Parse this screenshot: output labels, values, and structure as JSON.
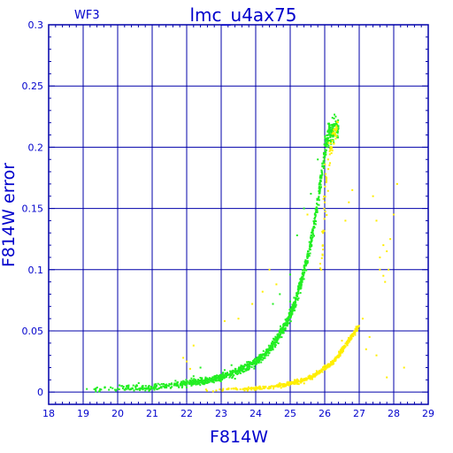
{
  "chart_data": {
    "type": "scatter",
    "title": "lmc_u4ax75",
    "corner_label": "WF3",
    "xlabel": "F814W",
    "ylabel": "F814W error",
    "xlim": [
      18,
      29
    ],
    "ylim": [
      -0.01,
      0.3
    ],
    "x_ticks": [
      18,
      19,
      20,
      21,
      22,
      23,
      24,
      25,
      26,
      27,
      28,
      29
    ],
    "y_ticks": [
      0,
      0.05,
      0.1,
      0.15,
      0.2,
      0.25,
      0.3
    ],
    "y_tick_labels": [
      "0",
      "0.05",
      "0.1",
      "0.15",
      "0.2",
      "0.25",
      "0.3"
    ],
    "grid": true,
    "colors": {
      "axis": "#0000aa",
      "grid": "#0000aa",
      "text": "#0000cc",
      "series_green": "#22ee22",
      "series_yellow": "#ffee00"
    },
    "series": [
      {
        "color": "green",
        "marker": "dot",
        "trend": [
          [
            18.8,
            0.002
          ],
          [
            19.5,
            0.0025
          ],
          [
            20.0,
            0.003
          ],
          [
            20.5,
            0.0035
          ],
          [
            21.0,
            0.004
          ],
          [
            21.5,
            0.005
          ],
          [
            22.0,
            0.007
          ],
          [
            22.5,
            0.009
          ],
          [
            23.0,
            0.012
          ],
          [
            23.5,
            0.017
          ],
          [
            24.0,
            0.025
          ],
          [
            24.3,
            0.032
          ],
          [
            24.6,
            0.042
          ],
          [
            24.9,
            0.056
          ],
          [
            25.1,
            0.07
          ],
          [
            25.3,
            0.088
          ],
          [
            25.5,
            0.11
          ],
          [
            25.65,
            0.13
          ],
          [
            25.8,
            0.155
          ],
          [
            25.9,
            0.175
          ],
          [
            26.0,
            0.195
          ],
          [
            26.1,
            0.21
          ],
          [
            26.3,
            0.215
          ]
        ],
        "x_range": [
          18.8,
          26.4
        ],
        "spread": 0.004,
        "outliers": [
          [
            21.9,
            0.009
          ],
          [
            22.2,
            0.013
          ],
          [
            22.4,
            0.02
          ],
          [
            23.1,
            0.018
          ],
          [
            23.3,
            0.022
          ],
          [
            24.5,
            0.072
          ],
          [
            24.7,
            0.08
          ],
          [
            25.0,
            0.096
          ],
          [
            25.2,
            0.128
          ],
          [
            25.5,
            0.145
          ],
          [
            25.6,
            0.162
          ],
          [
            25.4,
            0.15
          ],
          [
            25.8,
            0.19
          ],
          [
            24.8,
            0.05
          ],
          [
            25.0,
            0.074
          ]
        ]
      },
      {
        "color": "yellow",
        "marker": "dot",
        "trend": [
          [
            22.3,
            0.0015
          ],
          [
            23.0,
            0.002
          ],
          [
            23.5,
            0.0025
          ],
          [
            24.0,
            0.003
          ],
          [
            24.5,
            0.004
          ],
          [
            25.0,
            0.007
          ],
          [
            25.3,
            0.009
          ],
          [
            25.6,
            0.012
          ],
          [
            25.8,
            0.016
          ],
          [
            26.0,
            0.02
          ],
          [
            26.2,
            0.023
          ],
          [
            26.4,
            0.03
          ],
          [
            26.6,
            0.038
          ],
          [
            26.8,
            0.046
          ],
          [
            27.0,
            0.055
          ]
        ],
        "x_range": [
          22.3,
          27.0
        ],
        "spread": 0.002,
        "upper_branch": [
          [
            25.9,
            0.1
          ],
          [
            25.95,
            0.13
          ],
          [
            26.0,
            0.155
          ],
          [
            26.05,
            0.175
          ],
          [
            26.1,
            0.19
          ],
          [
            26.2,
            0.2
          ],
          [
            26.3,
            0.21
          ],
          [
            26.35,
            0.216
          ]
        ],
        "outliers": [
          [
            22.2,
            0.038
          ],
          [
            21.9,
            0.028
          ],
          [
            22.0,
            0.025
          ],
          [
            22.1,
            0.019
          ],
          [
            23.1,
            0.058
          ],
          [
            23.5,
            0.06
          ],
          [
            23.9,
            0.072
          ],
          [
            24.4,
            0.1
          ],
          [
            24.2,
            0.082
          ],
          [
            24.6,
            0.088
          ],
          [
            25.5,
            0.145
          ],
          [
            26.7,
            0.155
          ],
          [
            26.6,
            0.14
          ],
          [
            26.8,
            0.165
          ],
          [
            27.4,
            0.16
          ],
          [
            27.5,
            0.14
          ],
          [
            27.7,
            0.12
          ],
          [
            27.8,
            0.115
          ],
          [
            27.6,
            0.1
          ],
          [
            27.7,
            0.095
          ],
          [
            27.75,
            0.09
          ],
          [
            27.9,
            0.125
          ],
          [
            28.0,
            0.145
          ],
          [
            28.1,
            0.17
          ],
          [
            27.3,
            0.045
          ],
          [
            27.5,
            0.03
          ],
          [
            27.8,
            0.012
          ],
          [
            28.3,
            0.02
          ],
          [
            27.2,
            0.035
          ],
          [
            26.9,
            0.05
          ],
          [
            26.5,
            0.042
          ],
          [
            27.1,
            0.06
          ],
          [
            27.6,
            0.11
          ],
          [
            27.85,
            0.1
          ]
        ]
      }
    ]
  }
}
